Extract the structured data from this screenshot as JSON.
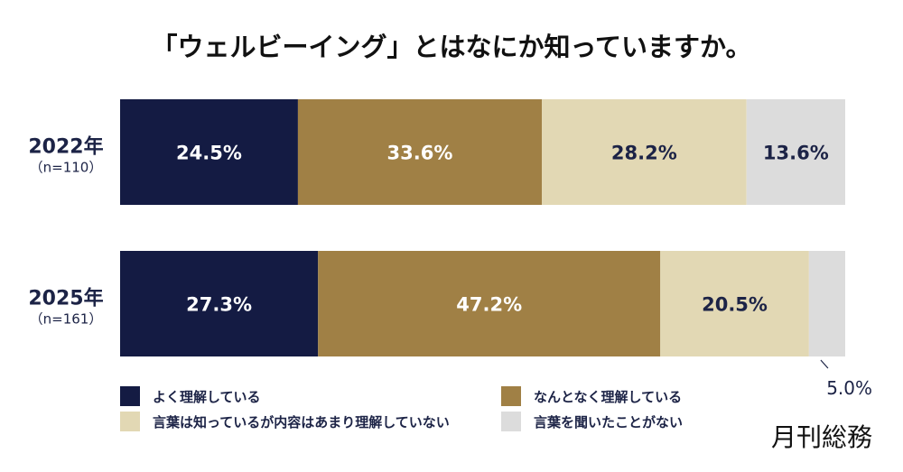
{
  "chart_data": {
    "type": "bar",
    "orientation": "horizontal",
    "stacked": true,
    "normalized_percent": true,
    "title": "「ウェルビーイング」とはなにか知っていますか。",
    "categories": [
      {
        "year": "2022年",
        "n": "（n=110）"
      },
      {
        "year": "2025年",
        "n": "（n=161）"
      }
    ],
    "series": [
      {
        "name": "よく理解している",
        "color": "#141b43",
        "label_color": "#ffffff",
        "values": [
          24.5,
          27.3
        ],
        "labels": [
          "24.5%",
          "27.3%"
        ]
      },
      {
        "name": "なんとなく理解している",
        "color": "#a08045",
        "label_color": "#ffffff",
        "values": [
          33.6,
          47.2
        ],
        "labels": [
          "33.6%",
          "47.2%"
        ]
      },
      {
        "name": "言葉は知っているが内容はあまり理解していない",
        "color": "#e2d8b4",
        "label_color": "#1c2346",
        "values": [
          28.2,
          20.5
        ],
        "labels": [
          "28.2%",
          "20.5%"
        ]
      },
      {
        "name": "言葉を聞いたことがない",
        "color": "#dcdcdc",
        "label_color": "#1c2346",
        "values": [
          13.6,
          5.0
        ],
        "labels": [
          "13.6%",
          "5.0%"
        ]
      }
    ],
    "outside_label": {
      "text": "5.0%",
      "category_index": 1,
      "series_index": 3
    },
    "legend_position": "bottom"
  },
  "brand": "月刊総務"
}
